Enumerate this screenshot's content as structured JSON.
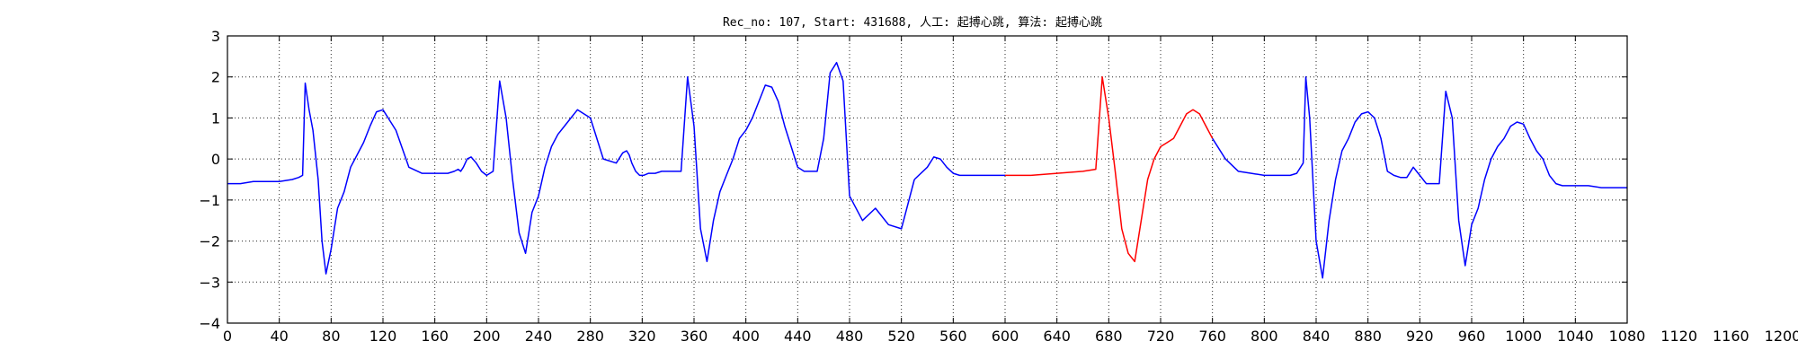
{
  "chart_data": {
    "type": "line",
    "title": "Rec_no: 107, Start: 431688, 人工: 起搏心跳, 算法: 起搏心跳",
    "xlabel": "",
    "ylabel": "",
    "xlim": [
      0,
      1080
    ],
    "ylim": [
      -4,
      3
    ],
    "grid": true,
    "x_ticks": [
      0,
      40,
      80,
      120,
      160,
      200,
      240,
      280,
      320,
      360,
      400,
      440,
      480,
      520,
      560,
      600,
      640,
      680,
      720,
      760,
      800,
      840,
      880,
      920,
      960,
      1000,
      1040,
      1080,
      1120,
      1160,
      1200,
      1240,
      1280,
      1320,
      1360,
      1400,
      1440,
      1480,
      1520,
      1560,
      1600,
      1640,
      1680,
      1720,
      1760,
      1800,
      1840,
      1880,
      1920,
      1960,
      2000,
      2040,
      2080,
      2120,
      2160,
      2200,
      2240,
      2280,
      2320,
      2360,
      2400,
      2440,
      2480,
      2520,
      2560,
      2600
    ],
    "x_tick_labels": [
      "0",
      "40",
      "80",
      "120",
      "160",
      "200",
      "240",
      "280",
      "320",
      "360",
      "400",
      "440",
      "480",
      "520",
      "560",
      "600",
      "640",
      "680",
      "720",
      "760",
      "800",
      "840",
      "880",
      "920",
      "960",
      "1000",
      "1040",
      "1080",
      "1120",
      "1160",
      "1200",
      "1240",
      "1280",
      "1320",
      "1360",
      "1400",
      "1440",
      "1480",
      "1520",
      "1560",
      "1600",
      "1640",
      "1680",
      "1720",
      "1760",
      "1800",
      "1840",
      "1880",
      "1920",
      "1960",
      "2000",
      "2040",
      "2080",
      "2120",
      "2160",
      "2200",
      "2240",
      "2280",
      "2320",
      "2360",
      "2400",
      "2440",
      "2480",
      "2520",
      "2560",
      "2600"
    ],
    "y_ticks": [
      -4,
      -3,
      -2,
      -1,
      0,
      1,
      2,
      3
    ],
    "y_tick_labels": [
      "−4",
      "−3",
      "−2",
      "−1",
      "0",
      "1",
      "2",
      "3"
    ],
    "series": [
      {
        "color": "#0000ff",
        "x": [
          0,
          10,
          20,
          30,
          40,
          50,
          55,
          58,
          60,
          63,
          66,
          70,
          73,
          76,
          80,
          85,
          90,
          95,
          100,
          105,
          110,
          115,
          120,
          130,
          140,
          150,
          160,
          170,
          175,
          178,
          180,
          182,
          185,
          188,
          192,
          196,
          200,
          205,
          210,
          215,
          220,
          225,
          230,
          235,
          240,
          245,
          250,
          255,
          260,
          270,
          280,
          290,
          300,
          305,
          308,
          310,
          312,
          315,
          318,
          321,
          325,
          330,
          335,
          340,
          345,
          350,
          355,
          360,
          365,
          370,
          375,
          380,
          385,
          390,
          395,
          400,
          405,
          410,
          415,
          420,
          425,
          430,
          435,
          440,
          445,
          450,
          455,
          460,
          465,
          470,
          475,
          480,
          490,
          500,
          510,
          520,
          530
        ],
        "y": [
          -0.6,
          -0.6,
          -0.55,
          -0.55,
          -0.55,
          -0.5,
          -0.45,
          -0.4,
          1.85,
          1.2,
          0.7,
          -0.5,
          -2.0,
          -2.8,
          -2.2,
          -1.2,
          -0.8,
          -0.2,
          0.1,
          0.4,
          0.8,
          1.15,
          1.2,
          0.7,
          -0.2,
          -0.35,
          -0.35,
          -0.35,
          -0.3,
          -0.25,
          -0.3,
          -0.2,
          0.0,
          0.05,
          -0.1,
          -0.3,
          -0.4,
          -0.3,
          1.9,
          1.0,
          -0.5,
          -1.8,
          -2.3,
          -1.3,
          -0.9,
          -0.2,
          0.3,
          0.6,
          0.8,
          1.2,
          1.0,
          0.0,
          -0.1,
          0.15,
          0.2,
          0.1,
          -0.1,
          -0.3,
          -0.4,
          -0.4,
          -0.35,
          -0.35,
          -0.3,
          -0.3,
          -0.3,
          -0.3,
          2.0,
          0.8,
          -1.7,
          -2.5,
          -1.5,
          -0.8,
          -0.4,
          0.0,
          0.5,
          0.7,
          1.0,
          1.4,
          1.8,
          1.75,
          1.4,
          0.8,
          0.3,
          -0.2,
          -0.3,
          -0.3,
          -0.3,
          0.5,
          2.1,
          2.35,
          1.9,
          -0.9,
          -1.5,
          -1.2,
          -1.6,
          -1.7,
          -0.5
        ]
      },
      {
        "color": "#0000ff",
        "x": [
          530,
          540,
          545,
          550,
          555,
          560,
          565,
          570,
          575,
          580,
          585,
          590,
          595,
          600
        ],
        "y": [
          -0.5,
          -0.2,
          0.05,
          0.0,
          -0.2,
          -0.35,
          -0.4,
          -0.4,
          -0.4,
          -0.4,
          -0.4,
          -0.4,
          -0.4,
          -0.4
        ]
      },
      {
        "color": "#ff0000",
        "x": [
          600,
          620,
          640,
          660,
          670,
          675,
          680,
          685,
          690,
          695,
          700,
          705,
          710,
          715,
          720,
          725,
          730,
          735,
          740,
          745,
          750,
          755,
          760
        ],
        "y": [
          -0.4,
          -0.4,
          -0.35,
          -0.3,
          -0.25,
          2.0,
          1.0,
          -0.3,
          -1.7,
          -2.3,
          -2.5,
          -1.5,
          -0.5,
          0.0,
          0.3,
          0.4,
          0.5,
          0.8,
          1.1,
          1.2,
          1.1,
          0.8,
          0.5
        ]
      },
      {
        "color": "#0000ff",
        "x": [
          760,
          770,
          780,
          790,
          800,
          810,
          820,
          825,
          830,
          832,
          835,
          840,
          845,
          850,
          855,
          860,
          865,
          870,
          875,
          880,
          885,
          890,
          895,
          900,
          905,
          910,
          915,
          920,
          925,
          930,
          935,
          940,
          945,
          950,
          955,
          960,
          965,
          970,
          975,
          980,
          985,
          990,
          995,
          1000,
          1005,
          1010,
          1015,
          1020,
          1025,
          1030,
          1035,
          1040,
          1045,
          1050,
          1060,
          1070,
          1080
        ],
        "y": [
          0.5,
          0.0,
          -0.3,
          -0.35,
          -0.4,
          -0.4,
          -0.4,
          -0.35,
          -0.1,
          2.0,
          1.0,
          -2.0,
          -2.9,
          -1.5,
          -0.5,
          0.2,
          0.5,
          0.9,
          1.1,
          1.15,
          1.0,
          0.5,
          -0.3,
          -0.4,
          -0.45,
          -0.45,
          -0.2,
          -0.4,
          -0.6,
          -0.6,
          -0.6,
          1.65,
          1.0,
          -1.5,
          -2.6,
          -1.6,
          -1.2,
          -0.5,
          0.0,
          0.3,
          0.5,
          0.8,
          0.9,
          0.85,
          0.5,
          0.2,
          0.0,
          -0.4,
          -0.6,
          -0.65,
          -0.65,
          -0.65,
          -0.65,
          -0.65,
          -0.7,
          -0.7,
          -0.7
        ]
      }
    ]
  }
}
